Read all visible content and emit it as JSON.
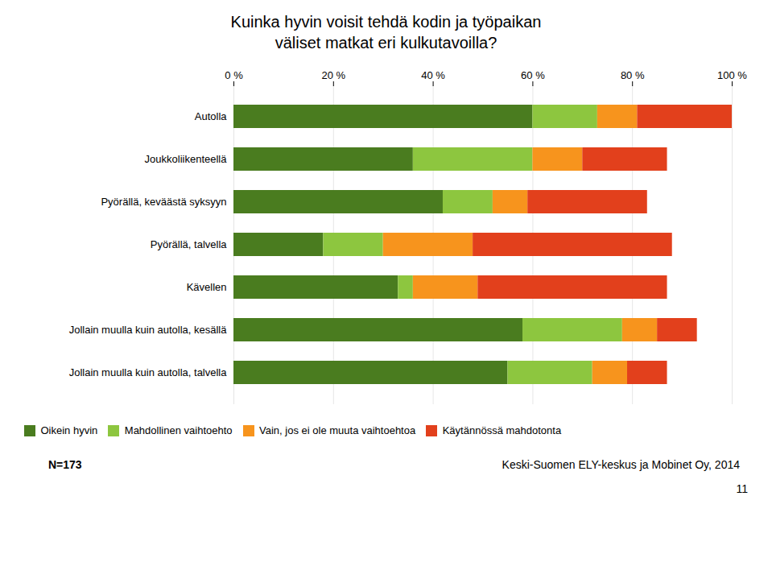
{
  "chart_data": {
    "type": "bar",
    "orientation": "horizontal",
    "stacked": true,
    "title": "Kuinka hyvin voisit tehdä kodin ja työpaikan\nväliset matkat eri kulkutavoilla?",
    "categories": [
      "Autolla",
      "Joukkoliikenteellä",
      "Pyörällä, keväästä syksyyn",
      "Pyörällä, talvella",
      "Kävellen",
      "Jollain muulla kuin autolla, kesällä",
      "Jollain muulla kuin autolla, talvella"
    ],
    "series": [
      {
        "name": "Oikein hyvin",
        "color": "#4a7c1f",
        "values": [
          60,
          36,
          42,
          18,
          33,
          58,
          55
        ]
      },
      {
        "name": "Mahdollinen vaihtoehto",
        "color": "#8dc63f",
        "values": [
          13,
          24,
          10,
          12,
          3,
          20,
          17
        ]
      },
      {
        "name": "Vain, jos ei ole muuta vaihtoehtoa",
        "color": "#f7941d",
        "values": [
          8,
          10,
          7,
          18,
          13,
          7,
          7
        ]
      },
      {
        "name": "Käytännössä mahdotonta",
        "color": "#e2401c",
        "values": [
          19,
          17,
          24,
          40,
          38,
          8,
          8
        ]
      }
    ],
    "xlim": [
      0,
      100
    ],
    "xticks": [
      {
        "value": 0,
        "label": "0 %"
      },
      {
        "value": 20,
        "label": "20 %"
      },
      {
        "value": 40,
        "label": "40 %"
      },
      {
        "value": 60,
        "label": "60 %"
      },
      {
        "value": 80,
        "label": "80 %"
      },
      {
        "value": 100,
        "label": "100 %"
      }
    ],
    "grid": true,
    "legend": "bottom",
    "annotations": [
      "N=173",
      "Keski-Suomen ELY-keskus ja Mobinet Oy, 2014",
      "11"
    ]
  }
}
